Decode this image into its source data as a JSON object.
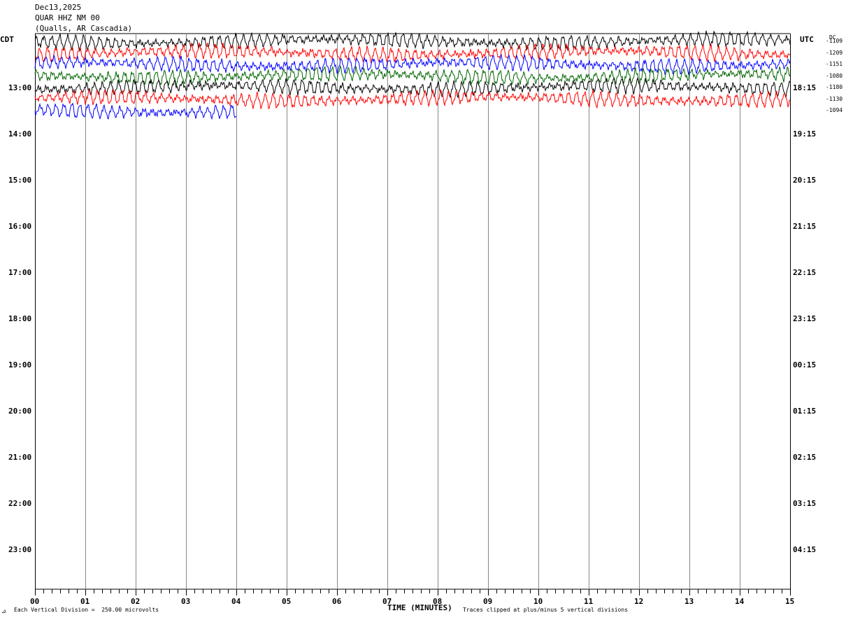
{
  "header": {
    "date": "Dec13,2025",
    "station": "QUAR HHZ NM 00",
    "location": "(Qualls, AR Cascadia)"
  },
  "axis_labels": {
    "left_zone": "CDT",
    "right_zone": "UTC",
    "dc_label": "DC",
    "xlabel": "TIME (MINUTES)"
  },
  "footer": {
    "corner_mark": "⊿",
    "scale_note": "Each Vertical Division =  250.00 microvolts",
    "clip_note": "Traces clipped at plus/minus 5 vertical divisions"
  },
  "chart_data": {
    "type": "line",
    "title": "QUAR HHZ NM 00",
    "xlabel": "TIME (MINUTES)",
    "x_ticks": [
      "00",
      "01",
      "02",
      "03",
      "04",
      "05",
      "06",
      "07",
      "08",
      "09",
      "10",
      "11",
      "12",
      "13",
      "14",
      "15"
    ],
    "xlim": [
      0,
      15
    ],
    "left_hour_labels": [
      "13:00",
      "14:00",
      "15:00",
      "16:00",
      "17:00",
      "18:00",
      "19:00",
      "20:00",
      "21:00",
      "22:00",
      "23:00"
    ],
    "right_hour_labels": [
      "18:15",
      "19:15",
      "20:15",
      "21:15",
      "22:15",
      "23:15",
      "00:15",
      "01:15",
      "02:15",
      "03:15",
      "04:15"
    ],
    "grid": "vertical",
    "trace_colors": [
      "#000000",
      "#ff0000",
      "#0000ff",
      "#006400"
    ],
    "traces": [
      {
        "dc": "-1109",
        "color": "#000000",
        "end_minute": 15
      },
      {
        "dc": "-1209",
        "color": "#ff0000",
        "end_minute": 15
      },
      {
        "dc": "-1151",
        "color": "#0000ff",
        "end_minute": 15
      },
      {
        "dc": "-1080",
        "color": "#006400",
        "end_minute": 15
      },
      {
        "dc": "-1180",
        "color": "#000000",
        "end_minute": 15
      },
      {
        "dc": "-1130",
        "color": "#ff0000",
        "end_minute": 15
      },
      {
        "dc": "-1094",
        "color": "#0000ff",
        "end_minute": 4
      }
    ]
  }
}
